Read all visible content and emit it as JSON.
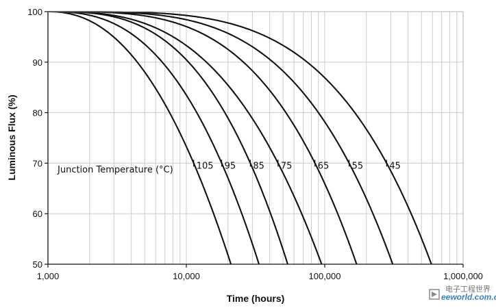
{
  "chart_data": {
    "type": "line",
    "title": "",
    "xlabel": "Time (hours)",
    "ylabel": "Luminous Flux (%)",
    "xscale": "log",
    "xlim": [
      1000,
      1000000
    ],
    "ylim": [
      50,
      100
    ],
    "x_tick_labels": [
      "1,000",
      "10,000",
      "100,000",
      "1,000,000"
    ],
    "x_ticks": [
      1000,
      10000,
      100000,
      1000000
    ],
    "y_ticks": [
      50,
      60,
      70,
      80,
      90,
      100
    ],
    "y_tick_labels": [
      "50",
      "60",
      "70",
      "80",
      "90",
      "100"
    ],
    "grid": "on (vertical minor log grid, horizontal major grid)",
    "annotation": "Junction Temperature (°C)",
    "series": [
      {
        "name": "105",
        "L70_hours": 11300,
        "end_hours": 21000
      },
      {
        "name": "95",
        "L70_hours": 18000,
        "end_hours": 33500
      },
      {
        "name": "85",
        "L70_hours": 29000,
        "end_hours": 54000
      },
      {
        "name": "75",
        "L70_hours": 46000,
        "end_hours": 95000
      },
      {
        "name": "65",
        "L70_hours": 85000,
        "end_hours": 170000
      },
      {
        "name": "55",
        "L70_hours": 150000,
        "end_hours": 310000
      },
      {
        "name": "45",
        "L70_hours": 280000,
        "end_hours": 590000
      }
    ],
    "colors": {
      "line": "#111111",
      "grid": "#cccccc",
      "axis": "#111111"
    }
  },
  "watermark": {
    "cn": "电子工程世界",
    "en": "eeworld.com.cn"
  }
}
